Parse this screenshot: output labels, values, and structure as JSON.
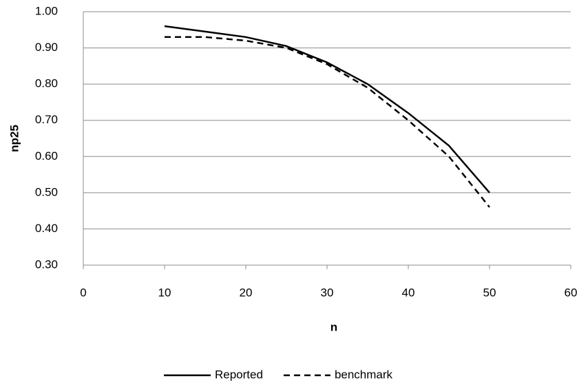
{
  "chart_data": {
    "type": "line",
    "x_label": "n",
    "y_label": "np25",
    "x": [
      10,
      15,
      20,
      25,
      30,
      35,
      40,
      45,
      50
    ],
    "series": [
      {
        "name": "Reported",
        "color": "#000000",
        "dash": "solid",
        "values": [
          0.96,
          0.945,
          0.93,
          0.905,
          0.86,
          0.8,
          0.72,
          0.63,
          0.5
        ]
      },
      {
        "name": "benchmark",
        "color": "#000000",
        "dash": "dashed",
        "values": [
          0.93,
          0.93,
          0.92,
          0.9,
          0.855,
          0.79,
          0.7,
          0.6,
          0.46
        ]
      }
    ],
    "xlim": [
      0,
      60
    ],
    "xticks": [
      0,
      10,
      20,
      30,
      40,
      50,
      60
    ],
    "ylim": [
      0.3,
      1.0
    ],
    "yticks": [
      {
        "value": 0.3,
        "label": "0.30"
      },
      {
        "value": 0.4,
        "label": "0.40"
      },
      {
        "value": 0.5,
        "label": "0.50"
      },
      {
        "value": 0.6,
        "label": "0.60"
      },
      {
        "value": 0.7,
        "label": "0.70"
      },
      {
        "value": 0.8,
        "label": "0.80"
      },
      {
        "value": 0.9,
        "label": "0.90"
      },
      {
        "value": 1.0,
        "label": "1.00"
      }
    ],
    "grid": true,
    "legend": "bottom"
  }
}
